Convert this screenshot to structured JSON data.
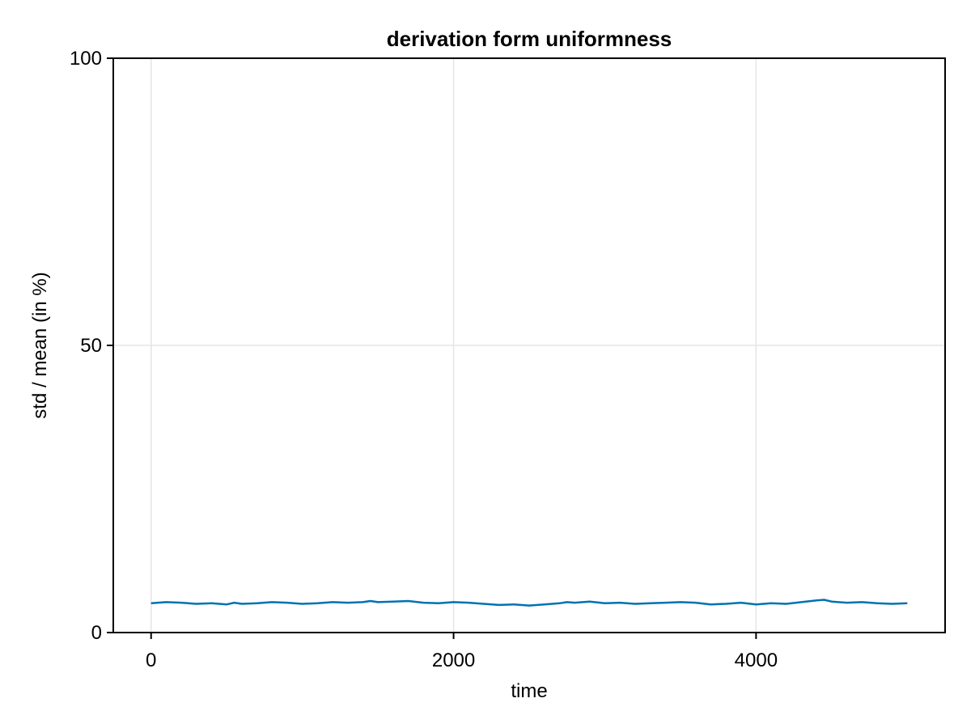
{
  "chart_data": {
    "type": "line",
    "title": "derivation form uniformness",
    "xlabel": "time",
    "ylabel": "std / mean (in %)",
    "xlim": [
      -250,
      5250
    ],
    "ylim": [
      0,
      100
    ],
    "xticks": [
      0,
      2000,
      4000
    ],
    "yticks": [
      0,
      50,
      100
    ],
    "xtick_labels": [
      "0",
      "2000",
      "4000"
    ],
    "ytick_labels": [
      "0",
      "50",
      "100"
    ],
    "grid": true,
    "legend": "none",
    "series": [
      {
        "color": "#0072b2",
        "x": [
          0,
          100,
          200,
          300,
          400,
          500,
          550,
          600,
          700,
          800,
          900,
          1000,
          1100,
          1200,
          1300,
          1400,
          1450,
          1500,
          1600,
          1700,
          1800,
          1900,
          2000,
          2100,
          2200,
          2300,
          2400,
          2500,
          2600,
          2700,
          2750,
          2800,
          2900,
          3000,
          3100,
          3200,
          3300,
          3400,
          3500,
          3600,
          3700,
          3800,
          3900,
          4000,
          4100,
          4200,
          4300,
          4400,
          4450,
          4500,
          4600,
          4700,
          4800,
          4900,
          5000
        ],
        "values": [
          5.1,
          5.3,
          5.2,
          5.0,
          5.1,
          4.9,
          5.2,
          5.0,
          5.1,
          5.3,
          5.2,
          5.0,
          5.1,
          5.3,
          5.2,
          5.3,
          5.5,
          5.3,
          5.4,
          5.5,
          5.2,
          5.1,
          5.3,
          5.2,
          5.0,
          4.8,
          4.9,
          4.7,
          4.9,
          5.1,
          5.3,
          5.2,
          5.4,
          5.1,
          5.2,
          5.0,
          5.1,
          5.2,
          5.3,
          5.2,
          4.9,
          5.0,
          5.2,
          4.9,
          5.1,
          5.0,
          5.3,
          5.6,
          5.7,
          5.4,
          5.2,
          5.3,
          5.1,
          5.0,
          5.1
        ]
      }
    ]
  }
}
